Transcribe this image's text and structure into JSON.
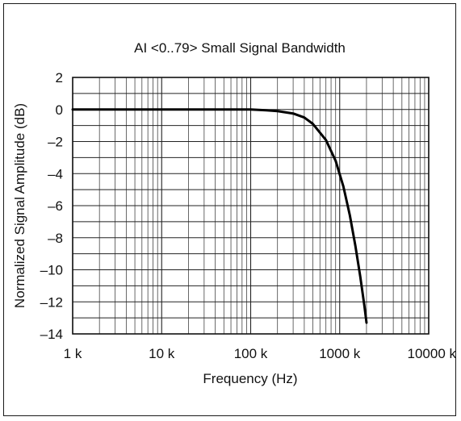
{
  "chart_data": {
    "type": "line",
    "title": "AI <0..79> Small Signal Bandwidth",
    "xlabel": "Frequency (Hz)",
    "ylabel": "Normalized Signal Amplitude (dB)",
    "xscale": "log",
    "xlim": [
      1000,
      10000000
    ],
    "ylim": [
      -14,
      2
    ],
    "x_ticks": [
      1000,
      10000,
      100000,
      1000000,
      10000000
    ],
    "x_tick_labels": [
      "1 k",
      "10 k",
      "100 k",
      "1000 k",
      "10000 k"
    ],
    "y_ticks": [
      2,
      0,
      -2,
      -4,
      -6,
      -8,
      -10,
      -12,
      -14
    ],
    "y_tick_labels": [
      "2",
      "0",
      "–2",
      "–4",
      "–6",
      "–8",
      "–10",
      "–12",
      "–14"
    ],
    "grid": true,
    "line_color": "#000000",
    "series": [
      {
        "x": [
          1000,
          10000,
          50000,
          100000,
          150000,
          200000,
          300000,
          400000,
          500000,
          700000,
          900000,
          1100000,
          1300000,
          1500000,
          1700000,
          1900000,
          2000000
        ],
        "y": [
          0,
          0,
          0,
          0,
          -0.05,
          -0.1,
          -0.25,
          -0.5,
          -0.9,
          -1.9,
          -3.2,
          -4.8,
          -6.6,
          -8.5,
          -10.4,
          -12.3,
          -13.3
        ]
      }
    ]
  }
}
